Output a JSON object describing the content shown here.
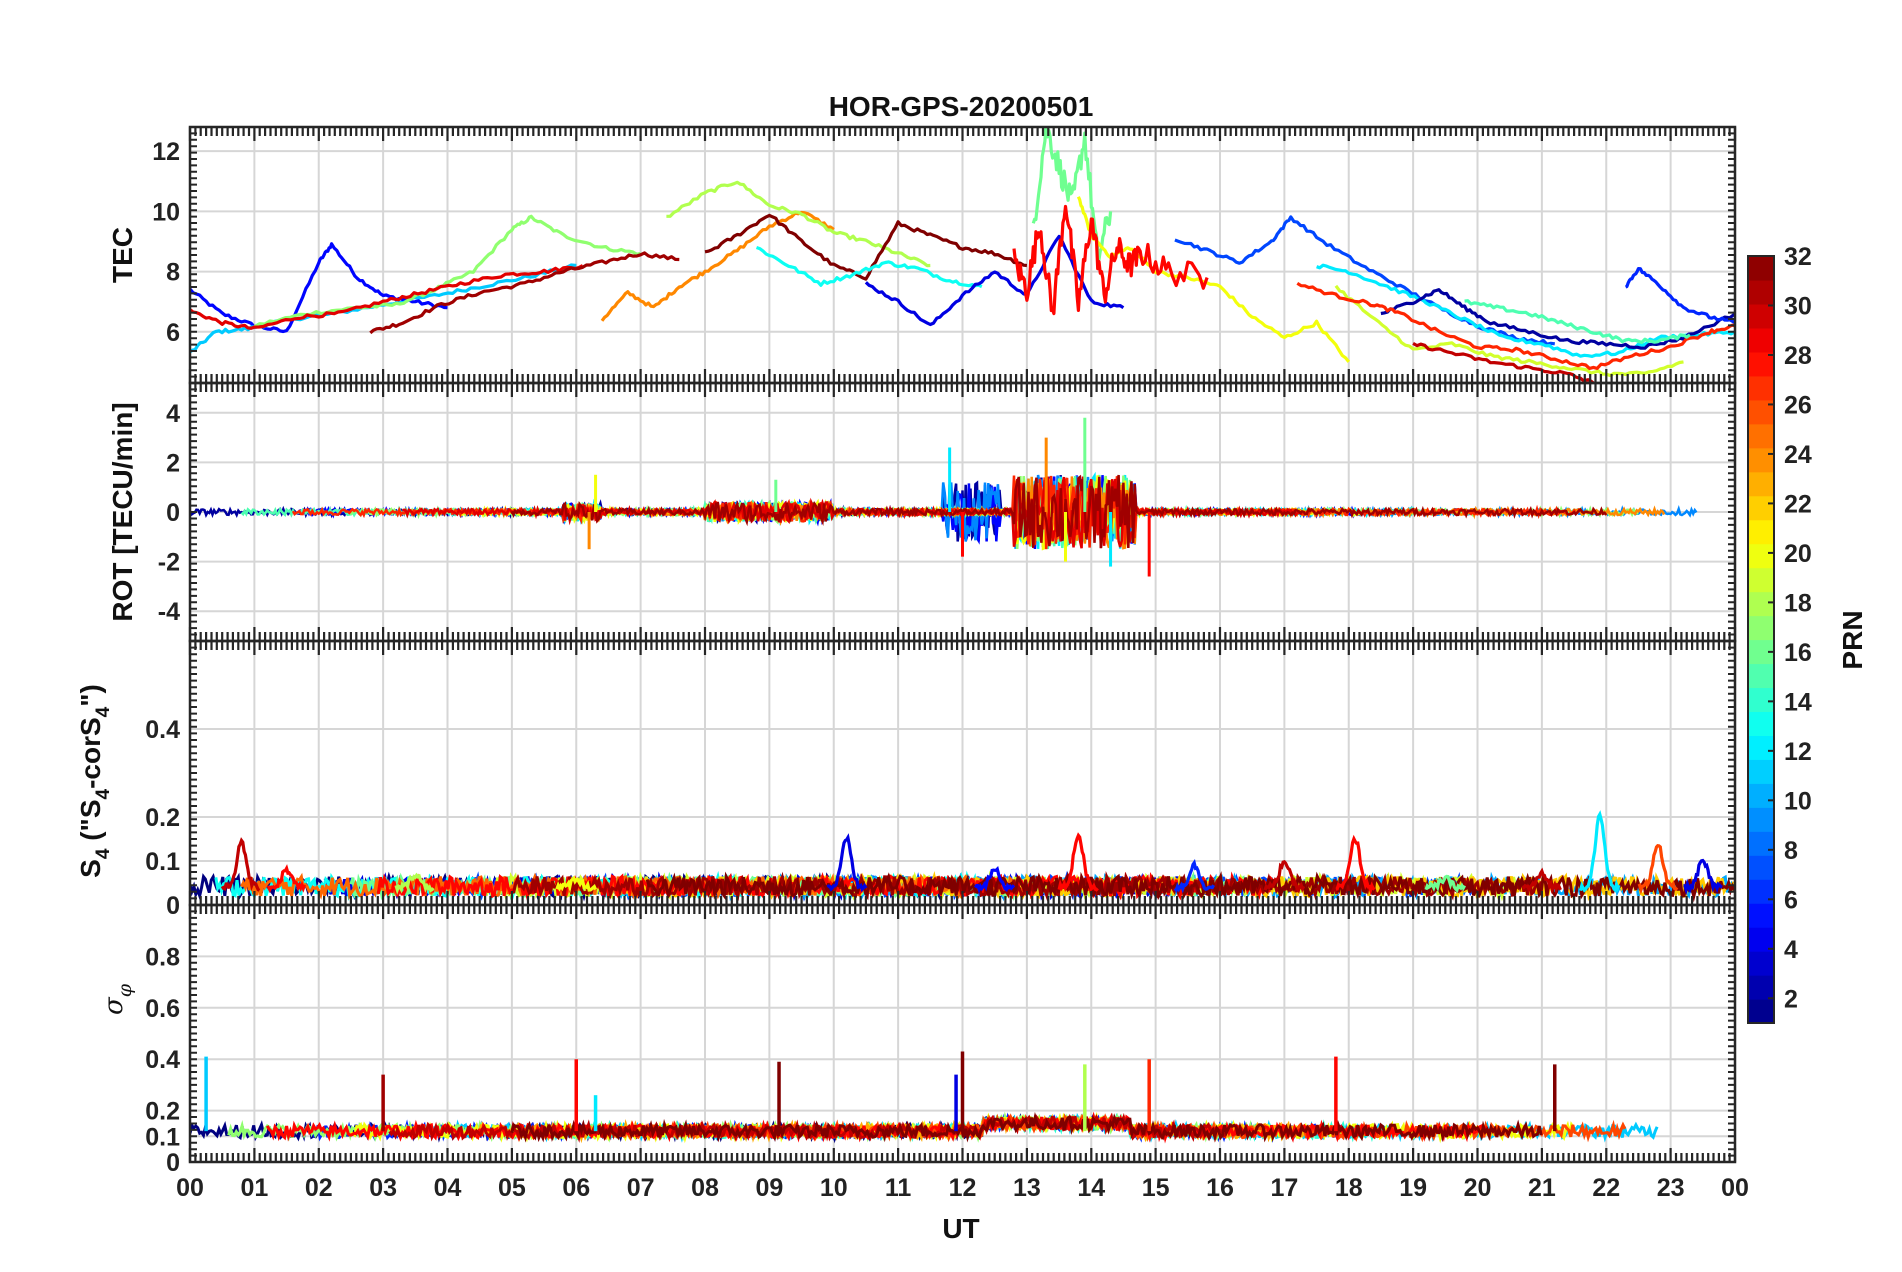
{
  "title": "HOR-GPS-20200501",
  "xaxis": {
    "label": "UT",
    "range": [
      0,
      24
    ],
    "tick_labels": [
      "00",
      "01",
      "02",
      "03",
      "04",
      "05",
      "06",
      "07",
      "08",
      "09",
      "10",
      "11",
      "12",
      "13",
      "14",
      "15",
      "16",
      "17",
      "18",
      "19",
      "20",
      "21",
      "22",
      "23",
      "00"
    ]
  },
  "colorbar": {
    "label": "PRN",
    "range": [
      1,
      32
    ],
    "tick_values": [
      2,
      4,
      6,
      8,
      10,
      12,
      14,
      16,
      18,
      20,
      22,
      24,
      26,
      28,
      30,
      32
    ],
    "tick_labels": [
      "2",
      "4",
      "6",
      "8",
      "10",
      "12",
      "14",
      "16",
      "18",
      "20",
      "22",
      "24",
      "26",
      "28",
      "30",
      "32"
    ],
    "colormap": "jet"
  },
  "panels": [
    {
      "name": "TEC",
      "ylabel": "TEC",
      "ylim": [
        4.3,
        12.8
      ],
      "ticks": [
        6,
        8,
        10,
        12
      ],
      "tick_labels": [
        "6",
        "8",
        "10",
        "12"
      ]
    },
    {
      "name": "ROT",
      "ylabel": "ROT [TECU/min]",
      "ylim": [
        -5.2,
        5.2
      ],
      "ticks": [
        -4,
        -2,
        0,
        2,
        4
      ],
      "tick_labels": [
        "-4",
        "-2",
        "0",
        "2",
        "4"
      ]
    },
    {
      "name": "S4",
      "ylabel_main": "S",
      "ylabel_sub1": "4",
      "ylabel_mid": " (\"S",
      "ylabel_sub2": "4",
      "ylabel_mid2": "-corS",
      "ylabel_sub3": "4",
      "ylabel_end": "\")",
      "ylim": [
        0,
        0.6
      ],
      "ticks": [
        0,
        0.1,
        0.2,
        0.4
      ],
      "tick_labels": [
        "0",
        "0.1",
        "0.2",
        "0.4"
      ]
    },
    {
      "name": "SIGMA_PHI",
      "ylabel_main": "σ",
      "ylabel_sub": "φ",
      "ylim": [
        0,
        1
      ],
      "ticks": [
        0,
        0.1,
        0.2,
        0.4,
        0.6,
        0.8
      ],
      "tick_labels": [
        "0",
        "0.1",
        "0.2",
        "0.4",
        "0.6",
        "0.8"
      ]
    }
  ],
  "chart_data": {
    "type": "line",
    "title": "HOR-GPS-20200501",
    "xlabel": "UT",
    "x_units": "hours",
    "series": [
      {
        "panel": "TEC",
        "name": "PRN 5",
        "prn": 5,
        "x": [
          0,
          0.5,
          1,
          1.5,
          2,
          2.2,
          2.6,
          3,
          3.5,
          4
        ],
        "y": [
          7.4,
          6.6,
          6.2,
          6.0,
          8.3,
          8.9,
          7.8,
          7.2,
          7.0,
          6.8
        ]
      },
      {
        "panel": "TEC",
        "name": "PRN 11",
        "prn": 11,
        "x": [
          0,
          0.4,
          0.9,
          1.5,
          2.2,
          3,
          3.8,
          4.5,
          5.2,
          6
        ],
        "y": [
          5.3,
          6.0,
          6.1,
          6.4,
          6.6,
          6.9,
          7.2,
          7.5,
          7.8,
          8.2
        ]
      },
      {
        "panel": "TEC",
        "name": "PRN 17",
        "prn": 17,
        "x": [
          1,
          1.8,
          2.6,
          3.2,
          3.8,
          4.4,
          5,
          5.3,
          5.8,
          6.4,
          7
        ],
        "y": [
          6.2,
          6.6,
          6.8,
          6.9,
          7.4,
          8.0,
          9.4,
          9.8,
          9.2,
          8.8,
          8.6
        ]
      },
      {
        "panel": "TEC",
        "name": "PRN 29",
        "prn": 29,
        "x": [
          0,
          0.5,
          1,
          1.7,
          2.3,
          3,
          3.6,
          4.2,
          4.9,
          5.5,
          6.1
        ],
        "y": [
          6.7,
          6.3,
          6.1,
          6.5,
          6.6,
          7.0,
          7.3,
          7.6,
          7.9,
          8.0,
          8.2
        ]
      },
      {
        "panel": "TEC",
        "name": "PRN 31",
        "prn": 31,
        "x": [
          2.8,
          3.3,
          3.9,
          4.5,
          5.2,
          5.8,
          6.4,
          7,
          7.6
        ],
        "y": [
          6.0,
          6.3,
          6.9,
          7.3,
          7.6,
          8.0,
          8.3,
          8.6,
          8.4
        ]
      },
      {
        "panel": "TEC",
        "name": "PRN 24",
        "prn": 24,
        "x": [
          6.4,
          6.8,
          7.2,
          7.6,
          8.0,
          8.5,
          9,
          9.5,
          10
        ],
        "y": [
          6.4,
          7.3,
          6.8,
          7.5,
          8.0,
          8.7,
          9.5,
          10.0,
          9.4
        ]
      },
      {
        "panel": "TEC",
        "name": "PRN 18",
        "prn": 18,
        "x": [
          7.4,
          8,
          8.5,
          9,
          9.5,
          10,
          10.5,
          11,
          11.5
        ],
        "y": [
          9.8,
          10.6,
          11.0,
          10.2,
          9.9,
          9.3,
          9.0,
          8.6,
          8.2
        ]
      },
      {
        "panel": "TEC",
        "name": "PRN 32",
        "prn": 32,
        "x": [
          8,
          8.5,
          9,
          9.5,
          10,
          10.5,
          11,
          11.5,
          12,
          12.5,
          13
        ],
        "y": [
          8.6,
          9.2,
          9.9,
          9.0,
          8.2,
          7.8,
          9.6,
          9.2,
          8.8,
          8.6,
          8.2
        ]
      },
      {
        "panel": "TEC",
        "name": "PRN 13",
        "prn": 13,
        "x": [
          8.8,
          9.3,
          9.8,
          10.3,
          10.8,
          11.3,
          11.8,
          12.3
        ],
        "y": [
          8.8,
          8.2,
          7.6,
          7.9,
          8.3,
          8.1,
          7.7,
          7.5
        ]
      },
      {
        "panel": "TEC",
        "name": "PRN 4",
        "prn": 4,
        "x": [
          10.5,
          11,
          11.5,
          12,
          12.5,
          13,
          13.5,
          14,
          14.5
        ],
        "y": [
          7.6,
          7.0,
          6.2,
          7.2,
          8.0,
          7.2,
          9.2,
          7.0,
          6.8
        ]
      },
      {
        "panel": "TEC",
        "name": "PRN 16",
        "prn": 16,
        "x": [
          13.1,
          13.3,
          13.5,
          13.7,
          13.9,
          14.1,
          14.3
        ],
        "y": [
          9.5,
          12.8,
          11.5,
          10.2,
          12.5,
          8.4,
          10.0
        ]
      },
      {
        "panel": "TEC",
        "name": "PRN 20",
        "prn": 20,
        "x": [
          13.8,
          14.0,
          14.3,
          14.6,
          15.0,
          15.5,
          16,
          16.5,
          17,
          17.5,
          18
        ],
        "y": [
          10.5,
          9.2,
          8.5,
          8.8,
          8.0,
          7.8,
          7.5,
          6.5,
          5.8,
          6.3,
          5.0
        ]
      },
      {
        "panel": "TEC",
        "name": "PRN 28",
        "prn": 28,
        "x": [
          12.8,
          13.0,
          13.2,
          13.4,
          13.6,
          13.8,
          14.0,
          14.2,
          14.4,
          14.6,
          14.8,
          15.2,
          15.8
        ],
        "y": [
          8.4,
          7.4,
          9.6,
          6.6,
          10.4,
          6.9,
          9.8,
          7.2,
          8.8,
          8.2,
          8.6,
          8.0,
          7.8
        ]
      },
      {
        "panel": "TEC",
        "name": "PRN 7",
        "prn": 7,
        "x": [
          15.3,
          15.8,
          16.3,
          16.8,
          17.1,
          17.6,
          18.2,
          18.8,
          19.4,
          20,
          20.6,
          21.2
        ],
        "y": [
          9.1,
          8.7,
          8.3,
          9.0,
          9.8,
          9.0,
          8.2,
          7.5,
          6.8,
          6.2,
          5.8,
          5.6
        ]
      },
      {
        "panel": "TEC",
        "name": "PRN 12",
        "prn": 12,
        "x": [
          17.5,
          18,
          18.6,
          19.2,
          19.8,
          20.4,
          21,
          21.6,
          22.2,
          22.8,
          23.4,
          24
        ],
        "y": [
          8.2,
          8.0,
          7.5,
          7.0,
          6.4,
          5.8,
          5.6,
          5.2,
          5.3,
          5.8,
          5.9,
          6.0
        ]
      },
      {
        "panel": "TEC",
        "name": "PRN 19",
        "prn": 19,
        "x": [
          17.8,
          18.4,
          19,
          19.6,
          20.2,
          20.8,
          21.4,
          22,
          22.6,
          23.2
        ],
        "y": [
          7.5,
          6.4,
          5.4,
          5.6,
          5.2,
          5.0,
          4.8,
          4.6,
          4.6,
          5.0
        ]
      },
      {
        "panel": "TEC",
        "name": "PRN 2",
        "prn": 2,
        "x": [
          18.5,
          19,
          19.4,
          19.8,
          20.2,
          20.8,
          21.4,
          22,
          22.6,
          23.2,
          24
        ],
        "y": [
          6.6,
          7.0,
          7.4,
          6.8,
          6.3,
          6.0,
          5.7,
          5.6,
          5.5,
          5.8,
          6.6
        ]
      },
      {
        "panel": "TEC",
        "name": "PRN 27",
        "prn": 27,
        "x": [
          17.2,
          17.8,
          18.4,
          18.8,
          19.4,
          20,
          20.6,
          21.2,
          21.8,
          22.4,
          23,
          23.6,
          24
        ],
        "y": [
          7.6,
          7.2,
          6.9,
          6.6,
          6.0,
          5.5,
          5.4,
          5.1,
          4.8,
          5.2,
          5.5,
          6.0,
          6.2
        ]
      },
      {
        "panel": "TEC",
        "name": "PRN 15",
        "prn": 15,
        "x": [
          19.8,
          20.3,
          20.8,
          21.3,
          21.8,
          22.3,
          22.8,
          23.3
        ],
        "y": [
          7.0,
          6.8,
          6.6,
          6.3,
          6.0,
          5.7,
          5.7,
          5.9
        ]
      },
      {
        "panel": "TEC",
        "name": "PRN 6",
        "prn": 6,
        "x": [
          22.3,
          22.5,
          22.8,
          23.2,
          23.6,
          24
        ],
        "y": [
          7.5,
          8.1,
          7.6,
          6.8,
          6.5,
          6.3
        ]
      },
      {
        "panel": "TEC",
        "name": "PRN 30",
        "prn": 30,
        "x": [
          19.0,
          19.6,
          20.2,
          20.8,
          21.4,
          21.8
        ],
        "y": [
          5.6,
          5.3,
          5.0,
          4.8,
          4.6,
          4.3
        ]
      },
      {
        "panel": "ROT",
        "name": "ROT all PRN",
        "prn": 0,
        "x": [
          0,
          6.2,
          6.3,
          9.1,
          11.8,
          12.0,
          13.3,
          13.6,
          13.9,
          14.3,
          14.9,
          24
        ],
        "y": [
          0.05,
          -1.5,
          1.5,
          1.3,
          2.6,
          -1.8,
          3.0,
          -2.0,
          3.8,
          -2.2,
          -2.6,
          0.0
        ]
      },
      {
        "panel": "S4",
        "name": "S4 peaks",
        "prn": 0,
        "x": [
          0.8,
          1.5,
          3.5,
          6.0,
          10.2,
          12.5,
          13.8,
          15.6,
          17.0,
          18.1,
          19.5,
          21.0,
          21.9,
          22.8,
          23.5
        ],
        "y": [
          0.14,
          0.08,
          0.07,
          0.06,
          0.15,
          0.08,
          0.16,
          0.09,
          0.1,
          0.15,
          0.06,
          0.07,
          0.2,
          0.14,
          0.1
        ]
      },
      {
        "panel": "SIGMA_PHI",
        "name": "sigma_phi peaks",
        "prn": 0,
        "x": [
          0.25,
          3.0,
          6.0,
          6.3,
          9.15,
          11.9,
          12.0,
          13.9,
          14.9,
          17.8,
          21.2
        ],
        "y": [
          0.41,
          0.34,
          0.4,
          0.26,
          0.39,
          0.34,
          0.43,
          0.38,
          0.4,
          0.41,
          0.38
        ]
      }
    ]
  }
}
